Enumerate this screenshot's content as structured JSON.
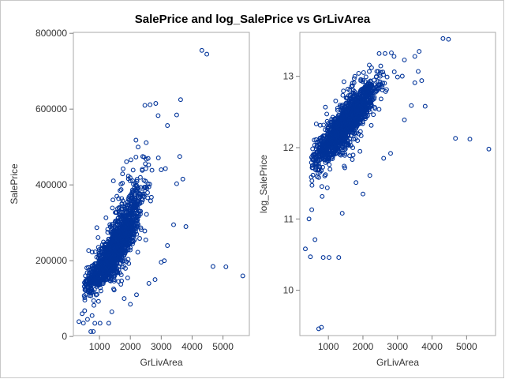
{
  "title": "SalePrice and log_SalePrice vs GrLivArea",
  "colors": {
    "marker": "#003399",
    "frame": "#a9a9a9",
    "text": "#333333"
  },
  "chart_data": [
    {
      "type": "scatter",
      "xlabel": "GrLivArea",
      "ylabel": "SalePrice",
      "xlim": [
        334,
        5700
      ],
      "ylim": [
        12789,
        790000
      ],
      "xticks": [
        1000,
        2000,
        3000,
        4000,
        5000
      ],
      "yticks": [
        0,
        200000,
        400000,
        600000,
        800000
      ],
      "xtick_labels": [
        "1000",
        "2000",
        "3000",
        "4000",
        "5000"
      ],
      "ytick_labels": [
        "0",
        "200000",
        "400000",
        "600000",
        "800000"
      ],
      "grid": false,
      "marker": "open-circle",
      "bulk_trend": {
        "slope": 112,
        "intercept": 4000,
        "x_center": 1500,
        "note": "dense cloud of ~2900 points"
      },
      "points": [
        [
          334,
          39300
        ],
        [
          438,
          60000
        ],
        [
          480,
          35311
        ],
        [
          520,
          68000
        ],
        [
          612,
          45000
        ],
        [
          720,
          12789
        ],
        [
          760,
          55000
        ],
        [
          800,
          13100
        ],
        [
          850,
          34900
        ],
        [
          1020,
          35000
        ],
        [
          1400,
          65000
        ],
        [
          1300,
          35000
        ],
        [
          4316,
          755000
        ],
        [
          4476,
          745000
        ],
        [
          3627,
          625000
        ],
        [
          2822,
          615000
        ],
        [
          2640,
          611657
        ],
        [
          2470,
          610000
        ],
        [
          3500,
          584500
        ],
        [
          3200,
          556581
        ],
        [
          2900,
          582933
        ],
        [
          2250,
          500000
        ],
        [
          2400,
          475000
        ],
        [
          3600,
          475000
        ],
        [
          3000,
          440000
        ],
        [
          2700,
          438780
        ],
        [
          3700,
          415298
        ],
        [
          3500,
          403000
        ],
        [
          2100,
          402000
        ],
        [
          2600,
          395000
        ],
        [
          4676,
          184750
        ],
        [
          5095,
          183850
        ],
        [
          5642,
          160000
        ],
        [
          3100,
          200000
        ],
        [
          3000,
          196000
        ],
        [
          3400,
          295000
        ],
        [
          3800,
          290000
        ],
        [
          3200,
          240000
        ],
        [
          2800,
          150000
        ],
        [
          2600,
          140000
        ],
        [
          2200,
          110000
        ],
        [
          1800,
          100000
        ],
        [
          2000,
          85000
        ],
        [
          2500,
          255000
        ],
        [
          2000,
          325000
        ],
        [
          2300,
          330000
        ]
      ]
    },
    {
      "type": "scatter",
      "xlabel": "GrLivArea",
      "ylabel": "log_SalePrice",
      "xlim": [
        334,
        5700
      ],
      "ylim": [
        9.42,
        13.55
      ],
      "xticks": [
        1000,
        2000,
        3000,
        4000,
        5000
      ],
      "yticks": [
        10,
        11,
        12,
        13
      ],
      "xtick_labels": [
        "1000",
        "2000",
        "3000",
        "4000",
        "5000"
      ],
      "ytick_labels": [
        "10",
        "11",
        "12",
        "13"
      ],
      "grid": false,
      "marker": "open-circle",
      "bulk_trend": {
        "note": "log of left panel values"
      },
      "points": [
        [
          334,
          10.58
        ],
        [
          438,
          11.0
        ],
        [
          480,
          10.47
        ],
        [
          520,
          11.13
        ],
        [
          612,
          10.71
        ],
        [
          720,
          9.46
        ],
        [
          800,
          9.48
        ],
        [
          850,
          10.46
        ],
        [
          1020,
          10.46
        ],
        [
          1300,
          10.46
        ],
        [
          1400,
          11.08
        ],
        [
          4316,
          13.53
        ],
        [
          4476,
          13.52
        ],
        [
          3627,
          13.35
        ],
        [
          2822,
          13.33
        ],
        [
          2640,
          13.32
        ],
        [
          2470,
          13.32
        ],
        [
          3500,
          13.28
        ],
        [
          3200,
          13.23
        ],
        [
          2900,
          13.28
        ],
        [
          2250,
          13.12
        ],
        [
          2400,
          13.07
        ],
        [
          3600,
          13.07
        ],
        [
          3000,
          12.99
        ],
        [
          2700,
          12.99
        ],
        [
          3700,
          12.94
        ],
        [
          3500,
          12.91
        ],
        [
          4676,
          12.13
        ],
        [
          5095,
          12.12
        ],
        [
          5642,
          11.98
        ],
        [
          3400,
          12.59
        ],
        [
          3800,
          12.58
        ],
        [
          3200,
          12.39
        ],
        [
          2800,
          11.92
        ],
        [
          2200,
          11.61
        ],
        [
          1800,
          11.51
        ],
        [
          2000,
          11.35
        ],
        [
          2600,
          11.85
        ]
      ]
    }
  ]
}
